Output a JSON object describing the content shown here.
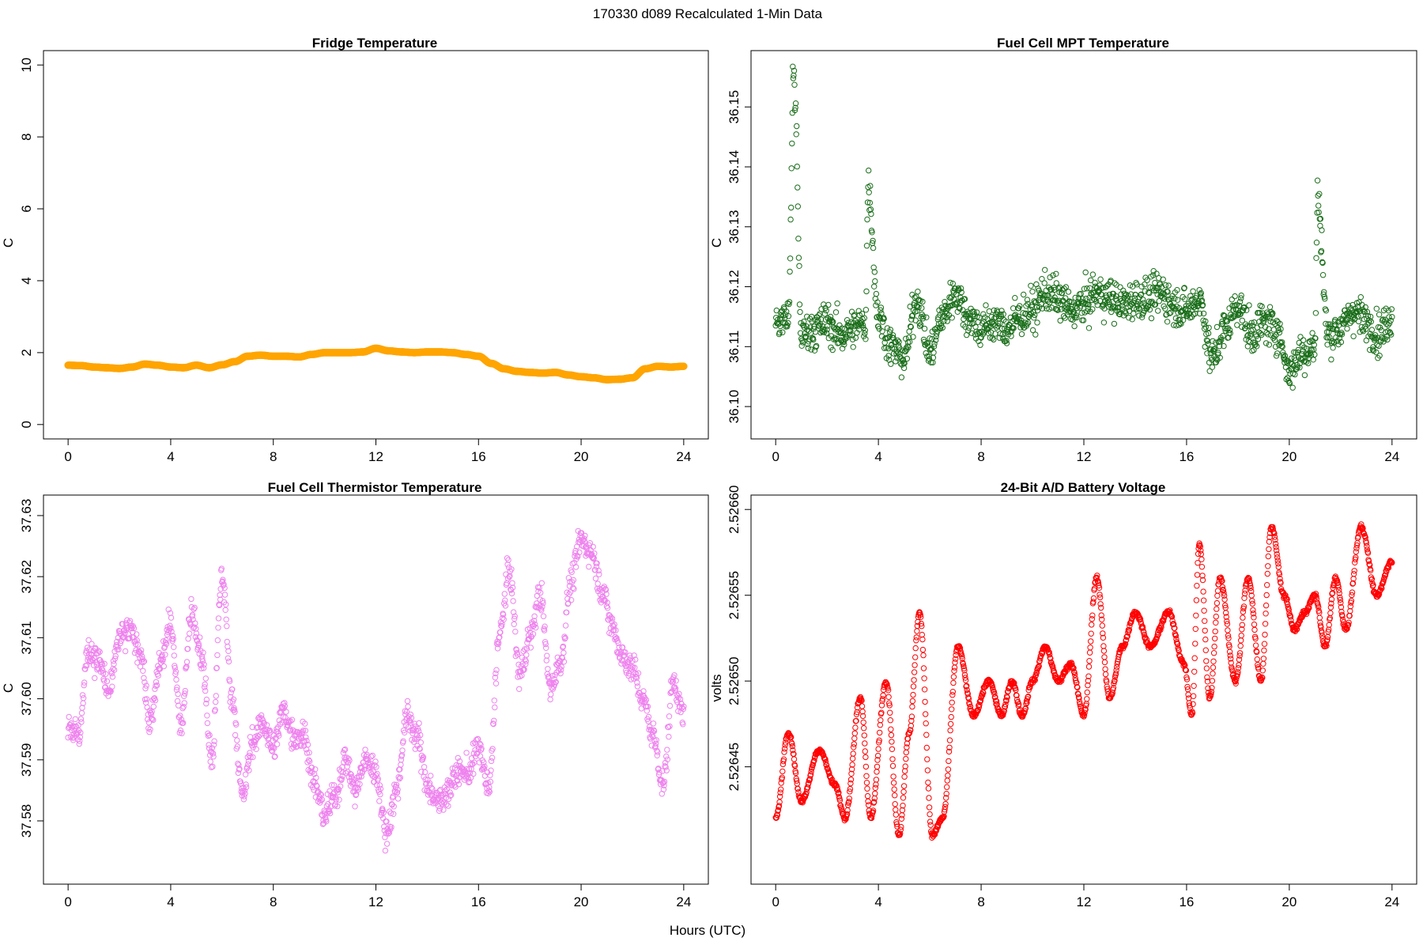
{
  "figure": {
    "suptitle": "170330   d089   Recalculated 1-Min Data",
    "xlabel": "Hours (UTC)"
  },
  "chart_data": [
    {
      "id": "fridge",
      "type": "scatter",
      "title": "Fridge Temperature",
      "xlabel": "Hours (UTC)",
      "ylabel": "C",
      "xlim": [
        0,
        24
      ],
      "ylim": [
        0,
        10
      ],
      "xticks": [
        0,
        4,
        8,
        12,
        16,
        20,
        24
      ],
      "yticks": [
        "0",
        "2",
        "4",
        "6",
        "8",
        "10"
      ],
      "color": "#ffa500",
      "marker": "filled-circle",
      "series": [
        {
          "name": "Fridge Temperature",
          "x": [
            0,
            0.5,
            1,
            1.5,
            2,
            2.5,
            3,
            3.5,
            4,
            4.5,
            5,
            5.5,
            6,
            6.5,
            7,
            7.5,
            8,
            8.5,
            9,
            9.5,
            10,
            10.5,
            11,
            11.5,
            12,
            12.5,
            13,
            13.5,
            14,
            14.5,
            15,
            15.5,
            16,
            16.5,
            17,
            17.5,
            18,
            18.5,
            19,
            19.5,
            20,
            20.5,
            21,
            21.5,
            22,
            22.5,
            23,
            23.5,
            24
          ],
          "values": [
            1.65,
            1.64,
            1.6,
            1.58,
            1.56,
            1.6,
            1.68,
            1.65,
            1.6,
            1.58,
            1.65,
            1.58,
            1.66,
            1.75,
            1.9,
            1.93,
            1.9,
            1.9,
            1.88,
            1.95,
            2.0,
            2.0,
            2.0,
            2.02,
            2.12,
            2.05,
            2.02,
            2.0,
            2.02,
            2.02,
            2.0,
            1.95,
            1.9,
            1.7,
            1.55,
            1.48,
            1.45,
            1.43,
            1.45,
            1.38,
            1.33,
            1.3,
            1.25,
            1.26,
            1.3,
            1.55,
            1.62,
            1.6,
            1.62
          ]
        }
      ]
    },
    {
      "id": "mpt",
      "type": "scatter",
      "title": "Fuel Cell MPT Temperature",
      "xlabel": "Hours (UTC)",
      "ylabel": "C",
      "xlim": [
        0,
        24
      ],
      "ylim": [
        36.097,
        36.157
      ],
      "xticks": [
        0,
        4,
        8,
        12,
        16,
        20,
        24
      ],
      "yticks": [
        "36.10",
        "36.11",
        "36.12",
        "36.13",
        "36.14",
        "36.15"
      ],
      "color": "#1a6e1a",
      "marker": "open-circle",
      "series": [
        {
          "name": "Fuel Cell MPT Temperature",
          "x": [
            0,
            0.5,
            0.7,
            0.75,
            1,
            1.5,
            2,
            2.5,
            3,
            3.5,
            3.6,
            4,
            4.5,
            5,
            5.5,
            6,
            6.5,
            7,
            7.5,
            8,
            8.5,
            9,
            9.5,
            10,
            10.5,
            11,
            11.5,
            12,
            12.5,
            13,
            13.5,
            14,
            14.5,
            15,
            15.5,
            16,
            16.5,
            17,
            17.5,
            18,
            18.5,
            19,
            19.5,
            20,
            20.5,
            21,
            21.1,
            21.5,
            22,
            22.5,
            23,
            23.5,
            24
          ],
          "values": [
            36.114,
            36.115,
            36.156,
            36.15,
            36.112,
            36.113,
            36.114,
            36.112,
            36.113,
            36.114,
            36.137,
            36.115,
            36.11,
            36.108,
            36.118,
            36.109,
            36.115,
            36.119,
            36.115,
            36.113,
            36.114,
            36.113,
            36.115,
            36.116,
            36.119,
            36.118,
            36.116,
            36.117,
            36.119,
            36.118,
            36.117,
            36.118,
            36.118,
            36.119,
            36.117,
            36.116,
            36.118,
            36.108,
            36.113,
            36.117,
            36.112,
            36.114,
            36.113,
            36.106,
            36.109,
            36.11,
            36.135,
            36.112,
            36.113,
            36.116,
            36.114,
            36.112,
            36.115
          ]
        }
      ]
    },
    {
      "id": "thermistor",
      "type": "scatter",
      "title": "Fuel Cell Thermistor Temperature",
      "xlabel": "Hours (UTC)",
      "ylabel": "C",
      "xlim": [
        0,
        24
      ],
      "ylim": [
        37.572,
        37.631
      ],
      "xticks": [
        0,
        4,
        8,
        12,
        16,
        20,
        24
      ],
      "yticks": [
        "37.58",
        "37.59",
        "37.60",
        "37.61",
        "37.62",
        "37.63"
      ],
      "color": "#ee82ee",
      "marker": "open-circle",
      "series": [
        {
          "name": "Fuel Cell Thermistor Temperature",
          "x": [
            0,
            0.4,
            0.8,
            1.2,
            1.6,
            2.0,
            2.4,
            2.8,
            3.2,
            3.6,
            4.0,
            4.4,
            4.8,
            5.2,
            5.6,
            6.0,
            6.4,
            6.8,
            7.2,
            7.6,
            8.0,
            8.4,
            8.8,
            9.2,
            9.6,
            10.0,
            10.4,
            10.8,
            11.2,
            11.6,
            12.0,
            12.4,
            12.8,
            13.2,
            13.6,
            14.0,
            14.4,
            14.8,
            15.2,
            15.6,
            16.0,
            16.4,
            16.8,
            17.2,
            17.6,
            18.0,
            18.4,
            18.8,
            19.2,
            19.6,
            20.0,
            20.4,
            20.8,
            21.2,
            21.6,
            22.0,
            22.4,
            22.8,
            23.2,
            23.6,
            24.0
          ],
          "values": [
            37.596,
            37.594,
            37.608,
            37.606,
            37.601,
            37.61,
            37.611,
            37.608,
            37.596,
            37.606,
            37.612,
            37.596,
            37.614,
            37.607,
            37.59,
            37.62,
            37.6,
            37.584,
            37.593,
            37.596,
            37.592,
            37.598,
            37.594,
            37.594,
            37.586,
            37.581,
            37.584,
            37.59,
            37.585,
            37.59,
            37.588,
            37.578,
            37.585,
            37.597,
            37.594,
            37.586,
            37.583,
            37.585,
            37.588,
            37.588,
            37.592,
            37.585,
            37.61,
            37.621,
            37.604,
            37.61,
            37.617,
            37.602,
            37.606,
            37.619,
            37.626,
            37.624,
            37.618,
            37.612,
            37.607,
            37.605,
            37.6,
            37.594,
            37.586,
            37.603,
            37.597
          ]
        }
      ]
    },
    {
      "id": "battery",
      "type": "scatter",
      "title": "24-Bit A/D Battery Voltage",
      "xlabel": "Hours (UTC)",
      "ylabel": "volts",
      "xlim": [
        0,
        24
      ],
      "ylim": [
        2.52639,
        2.5266
      ],
      "xticks": [
        0,
        4,
        8,
        12,
        16,
        20,
        24
      ],
      "yticks": [
        "2.52645",
        "2.52650",
        "2.52655",
        "2.52660"
      ],
      "color": "#ff0000",
      "marker": "open-circle",
      "series": [
        {
          "name": "24-Bit A/D Battery Voltage",
          "x": [
            0,
            0.5,
            1,
            1.7,
            2.3,
            2.7,
            3.3,
            3.7,
            4.3,
            4.8,
            5.2,
            5.6,
            6.1,
            6.5,
            7.1,
            7.7,
            8.3,
            8.8,
            9.2,
            9.6,
            10.0,
            10.5,
            11.0,
            11.5,
            12.0,
            12.5,
            13.0,
            13.5,
            14.0,
            14.6,
            15.3,
            15.9,
            16.2,
            16.5,
            16.9,
            17.3,
            17.9,
            18.4,
            18.9,
            19.3,
            19.8,
            20.2,
            20.6,
            21.0,
            21.4,
            21.8,
            22.2,
            22.8,
            23.4,
            24.0
          ],
          "values": [
            2.52642,
            2.52647,
            2.52643,
            2.52646,
            2.52644,
            2.52642,
            2.52649,
            2.52642,
            2.5265,
            2.52641,
            2.52647,
            2.52654,
            2.52641,
            2.52642,
            2.52652,
            2.52648,
            2.5265,
            2.52648,
            2.5265,
            2.52648,
            2.5265,
            2.52652,
            2.5265,
            2.52651,
            2.52648,
            2.52656,
            2.52649,
            2.52652,
            2.52654,
            2.52652,
            2.52654,
            2.52651,
            2.52648,
            2.52658,
            2.52649,
            2.52656,
            2.5265,
            2.52656,
            2.5265,
            2.52659,
            2.52655,
            2.52653,
            2.52654,
            2.52655,
            2.52652,
            2.52656,
            2.52653,
            2.52659,
            2.52655,
            2.52657
          ]
        }
      ]
    }
  ]
}
